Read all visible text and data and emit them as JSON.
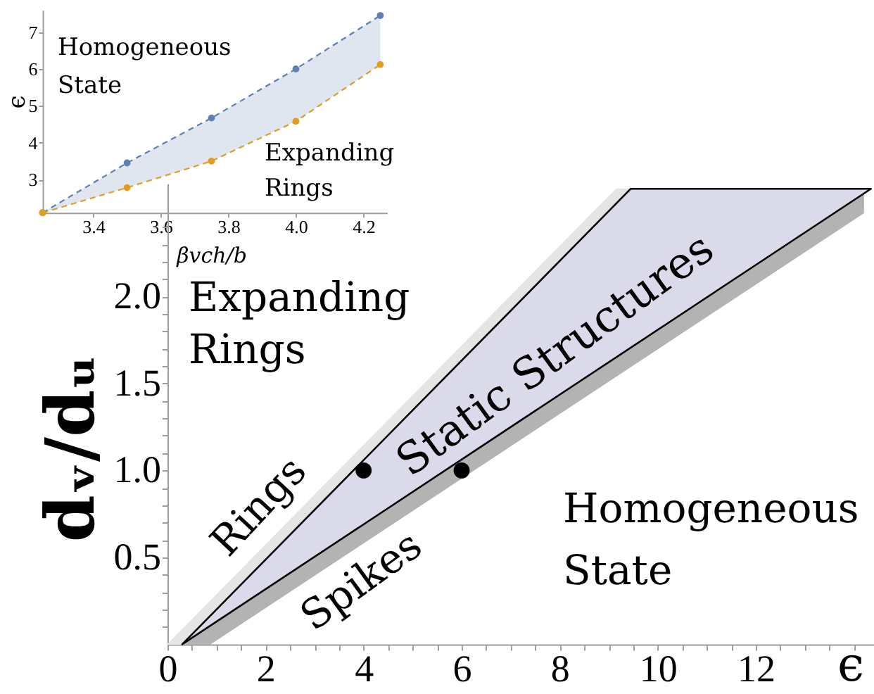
{
  "chart_data": [
    {
      "type": "line",
      "xlabel": "βvch/b",
      "ylabel": "ϵ",
      "x": [
        3.25,
        3.5,
        3.75,
        4.0,
        4.25
      ],
      "xlim": [
        3.25,
        4.27
      ],
      "ylim": [
        2.1,
        7.6
      ],
      "xticks": [
        3.4,
        3.6,
        3.8,
        {
          "value": 4,
          "label": "4.0"
        },
        4.2
      ],
      "yticks": [
        3,
        4,
        5,
        6,
        7
      ],
      "marker": "circle",
      "line_style": "dashed",
      "series": [
        {
          "color": "#5e81b5",
          "values": [
            2.1,
            3.45,
            4.67,
            6.0,
            7.45
          ],
          "lower": [
            2.1,
            2.78,
            3.5,
            4.58,
            6.12
          ],
          "upper": [
            2.1,
            3.45,
            4.67,
            6.0,
            7.45
          ]
        },
        {
          "color": "#e19c24",
          "values": [
            2.1,
            2.78,
            3.5,
            4.58,
            6.12
          ]
        }
      ],
      "annotations": [
        "Homogeneous\nState",
        "Expanding\nRings"
      ]
    },
    {
      "type": "area",
      "xlabel": "ϵ",
      "ylabel": "dᵥ/dᵤ",
      "xlim": [
        0,
        14.4
      ],
      "ylim": [
        0,
        2.65
      ],
      "xticks": [
        0,
        {
          "value": 0.5,
          "label": null
        },
        {
          "value": 1,
          "label": null
        },
        {
          "value": 1.5,
          "label": null
        },
        2,
        {
          "value": 2.5,
          "label": null
        },
        {
          "value": 3,
          "label": null
        },
        {
          "value": 3.5,
          "label": null
        },
        4,
        {
          "value": 4.5,
          "label": null
        },
        {
          "value": 5,
          "label": null
        },
        {
          "value": 5.5,
          "label": null
        },
        6,
        {
          "value": 6.5,
          "label": null
        },
        {
          "value": 7,
          "label": null
        },
        {
          "value": 7.5,
          "label": null
        },
        8,
        {
          "value": 8.5,
          "label": null
        },
        {
          "value": 9,
          "label": null
        },
        {
          "value": 9.5,
          "label": null
        },
        10,
        {
          "value": 10.5,
          "label": null
        },
        {
          "value": 11,
          "label": null
        },
        {
          "value": 11.5,
          "label": null
        },
        12,
        {
          "value": 12.5,
          "label": null
        },
        {
          "value": 13,
          "label": null
        },
        {
          "value": 13.5,
          "label": null
        },
        {
          "value": 14,
          "label": null
        }
      ],
      "yticks": [
        {
          "value": 0.1,
          "label": null
        },
        {
          "value": 0.2,
          "label": null
        },
        {
          "value": 0.3,
          "label": null
        },
        {
          "value": 0.4,
          "label": null
        },
        0.5,
        {
          "value": 0.6,
          "label": null
        },
        {
          "value": 0.7,
          "label": null
        },
        {
          "value": 0.8,
          "label": null
        },
        {
          "value": 0.9,
          "label": null
        },
        {
          "value": 1,
          "label": "1.0"
        },
        {
          "value": 1.1,
          "label": null
        },
        {
          "value": 1.2,
          "label": null
        },
        {
          "value": 1.3,
          "label": null
        },
        {
          "value": 1.4,
          "label": null
        },
        1.5,
        {
          "value": 1.6,
          "label": null
        },
        {
          "value": 1.7,
          "label": null
        },
        {
          "value": 1.8,
          "label": null
        },
        {
          "value": 1.9,
          "label": null
        },
        {
          "value": 2,
          "label": "2.0"
        },
        {
          "value": 2.1,
          "label": null
        },
        {
          "value": 2.2,
          "label": null
        },
        {
          "value": 2.3,
          "label": null
        },
        {
          "value": 2.4,
          "label": null
        }
      ],
      "series": [
        {
          "color": "#e5e5e5",
          "x": [
            0,
            0.3,
            9.45,
            9.15
          ],
          "values": [
            0,
            0,
            2.62,
            2.62
          ]
        },
        {
          "color": "#b3b3b3",
          "x": [
            0.3,
            0.87,
            14.2,
            14.2
          ],
          "values": [
            0,
            0,
            2.48,
            2.59
          ]
        },
        {
          "color": "#dadaeb",
          "line_style": "solid",
          "x": [
            0.3,
            9.45,
            14.35
          ],
          "values": [
            0,
            2.62,
            2.62
          ]
        },
        {
          "type": "scatter",
          "color": "#000000",
          "marker": "circle",
          "x": [
            4,
            6
          ],
          "values": [
            1.0,
            1.0
          ]
        }
      ],
      "annotations": [
        "Expanding\nRings",
        "Rings",
        "Static Structures",
        "Spikes",
        "Homogeneous\nState"
      ]
    }
  ]
}
